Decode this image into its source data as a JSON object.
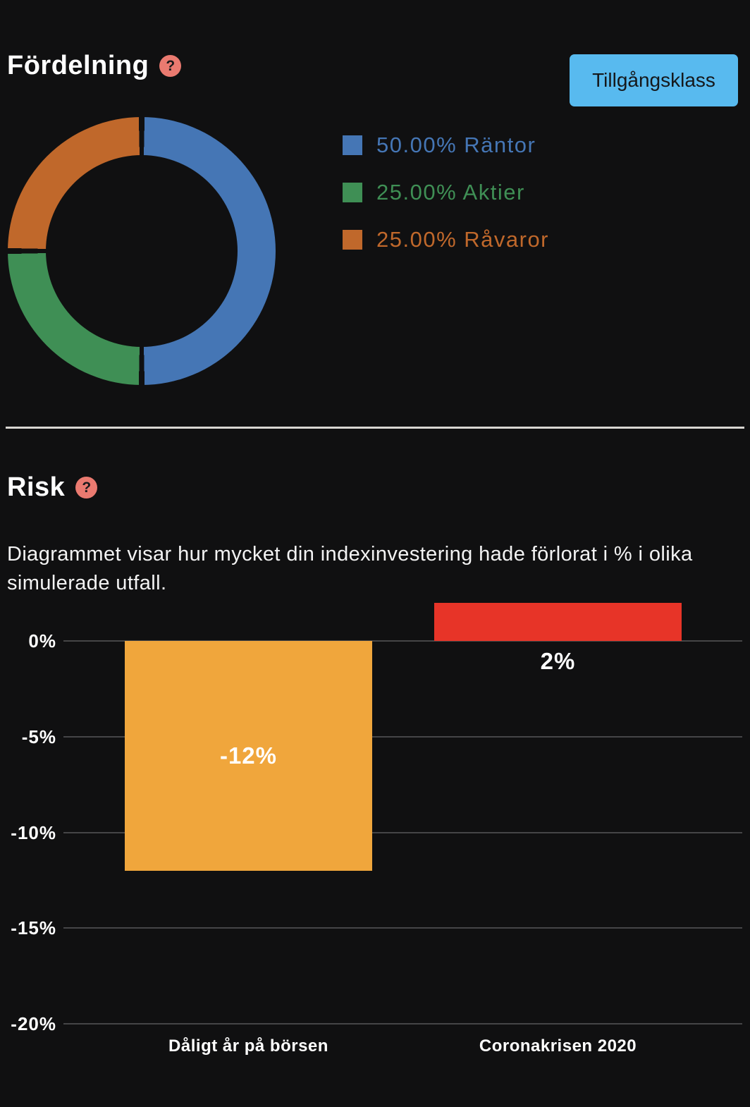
{
  "allocation": {
    "title": "Fördelning",
    "help_icon_char": "?",
    "help_icon_color": "#EA7A70",
    "button_label": "Tillgångsklass",
    "button_bg": "#58BAEF",
    "button_text_color": "#15181B"
  },
  "risk": {
    "title": "Risk",
    "help_icon_char": "?",
    "help_icon_color": "#EA7A70",
    "description": "Diagrammet visar hur mycket din indexinvestering hade förlorat i % i olika simulerade utfall."
  },
  "chart_data": [
    {
      "type": "pie",
      "subtype": "donut",
      "title": "Fördelning",
      "direction": "clockwise",
      "start_angle_deg": 0,
      "legend_position": "right",
      "segments": [
        {
          "label": "Räntor",
          "value": 50.0,
          "display": "50.00% Räntor",
          "color": "#4576B5"
        },
        {
          "label": "Aktier",
          "value": 25.0,
          "display": "25.00% Aktier",
          "color": "#3F8F55"
        },
        {
          "label": "Råvaror",
          "value": 25.0,
          "display": "25.00% Råvaror",
          "color": "#C0682B"
        }
      ]
    },
    {
      "type": "bar",
      "title": "Risk",
      "categories": [
        "Dåligt år på börsen",
        "Coronakrisen 2020"
      ],
      "values": [
        -12,
        2
      ],
      "bar_labels": [
        "-12%",
        "2%"
      ],
      "bar_colors": [
        "#F0A63C",
        "#E73428"
      ],
      "yticks": [
        0,
        -5,
        -10,
        -15,
        -20
      ],
      "ytick_labels": [
        "0%",
        "-5%",
        "-10%",
        "-15%",
        "-20%"
      ],
      "ylim": [
        -22,
        2.5
      ],
      "grid": true,
      "value_label_color": "#ffffff"
    }
  ]
}
